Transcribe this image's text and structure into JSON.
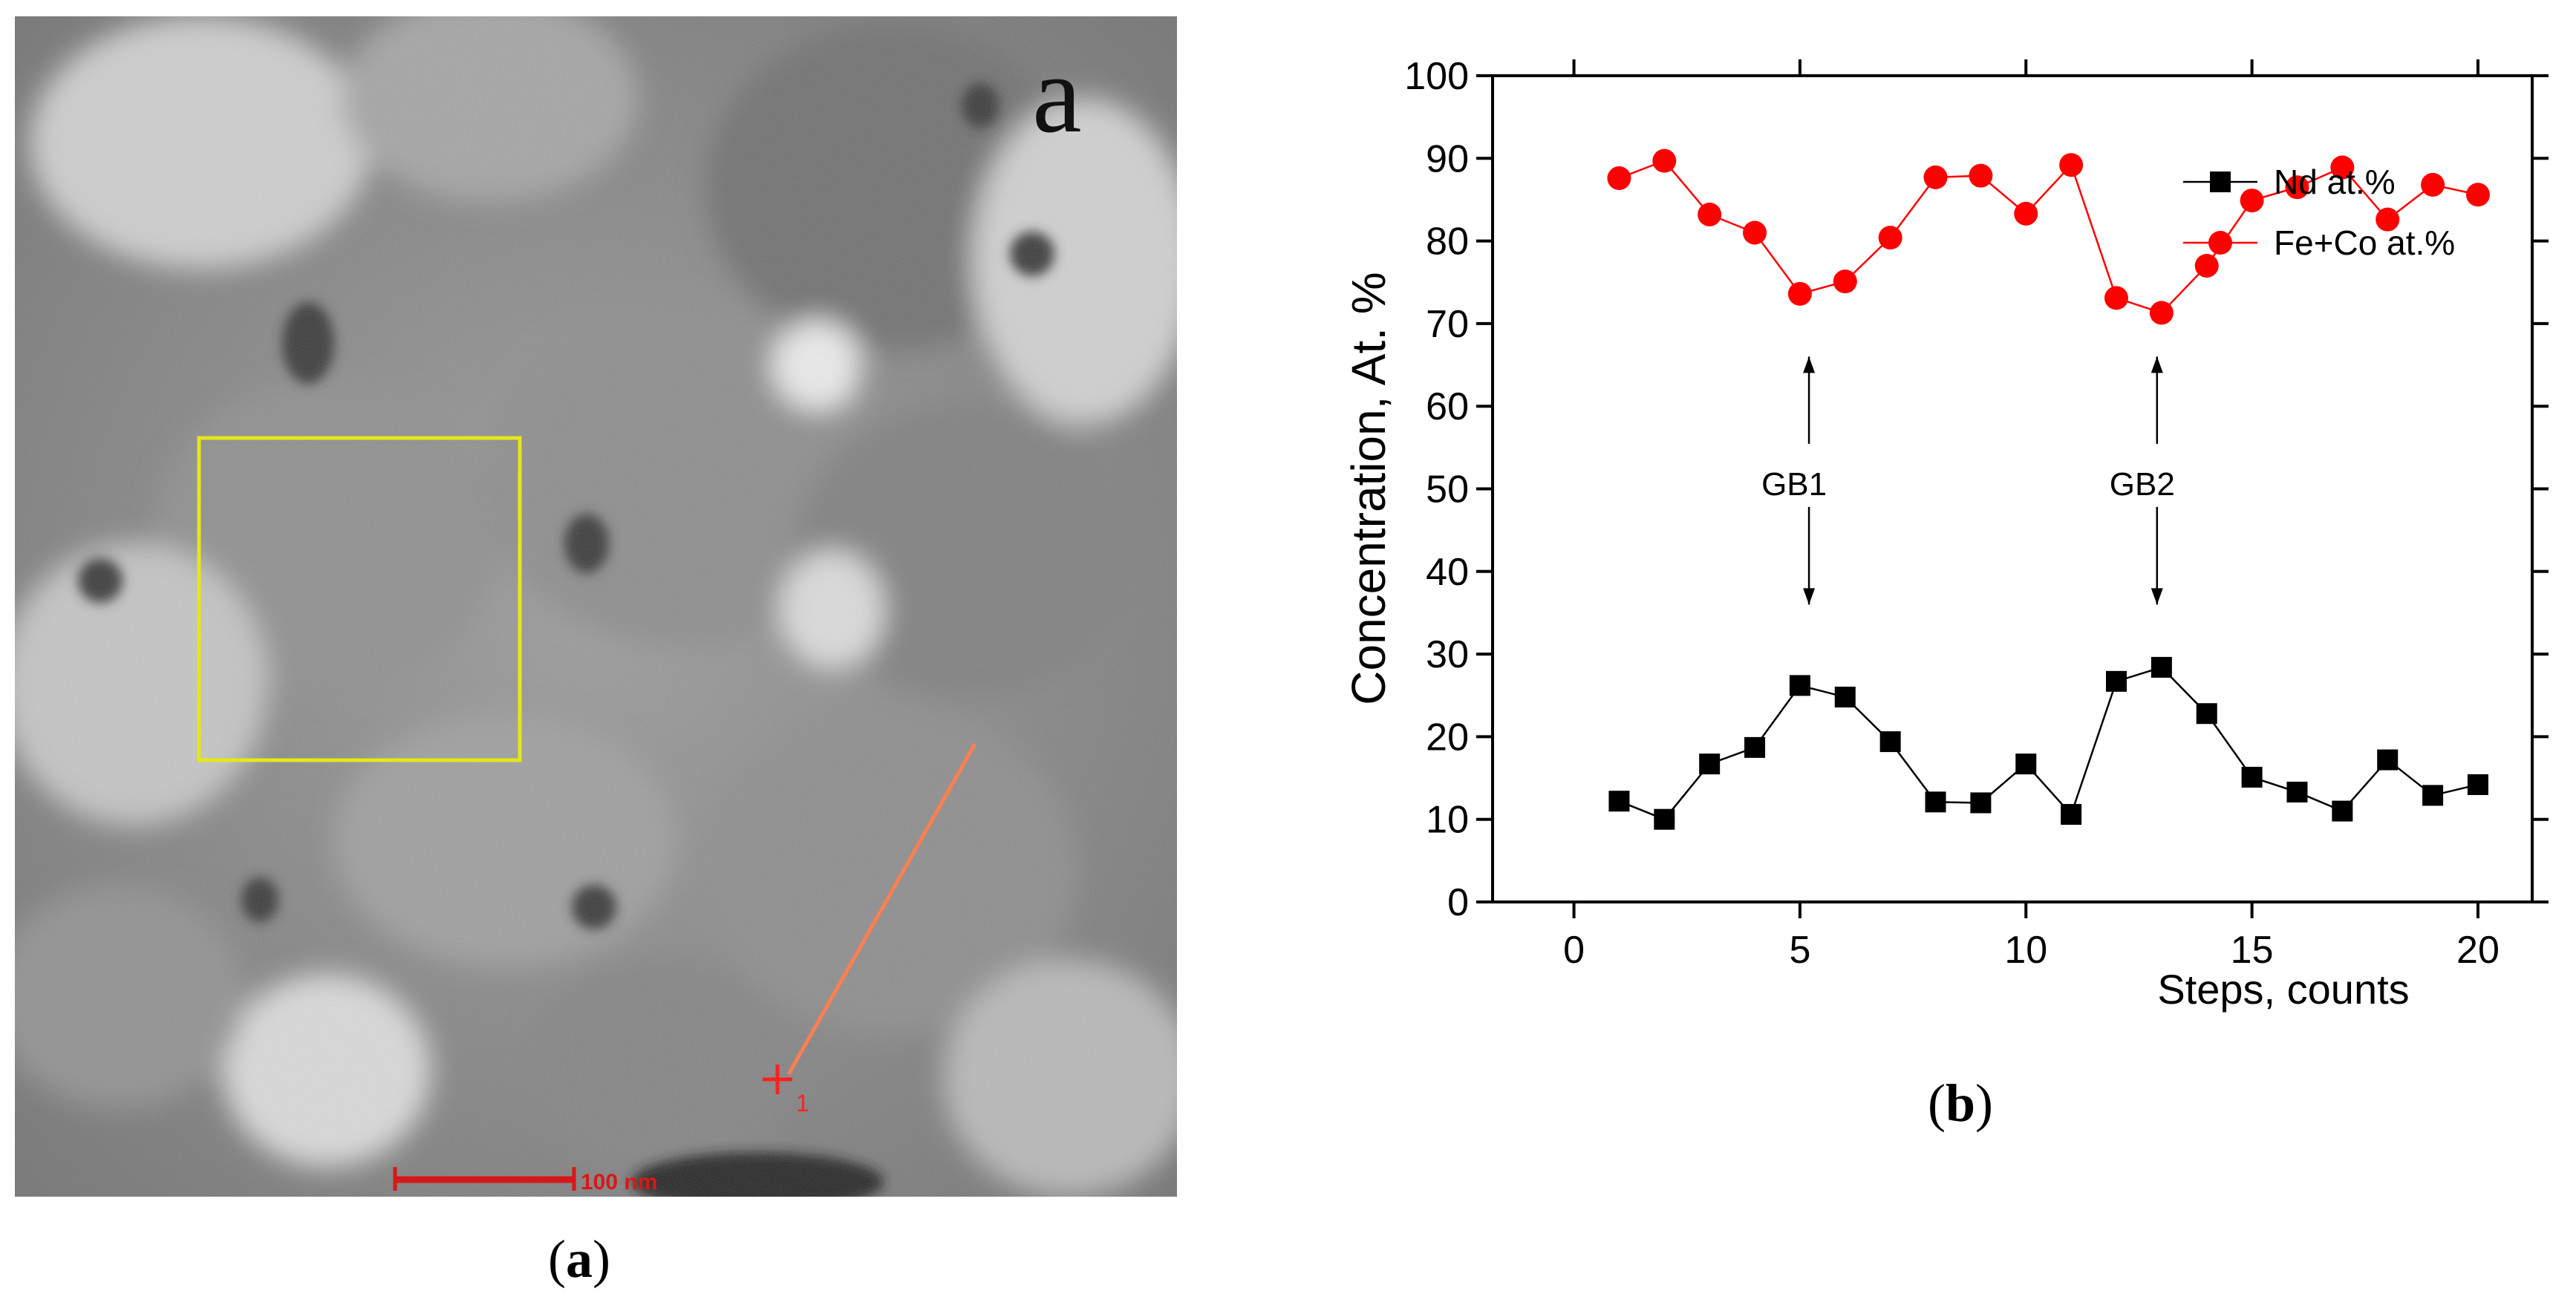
{
  "panel_a": {
    "corner_label": "a",
    "scale_bar_label": "100 nm",
    "point_marker_label": "1",
    "caption_open": "(",
    "caption_letter": "a",
    "caption_close": ")"
  },
  "panel_b": {
    "caption_open": "(",
    "caption_letter": "b",
    "caption_close": ")"
  },
  "colors": {
    "nd": "#000000",
    "fe_co": "#ff0000",
    "selection_box": "#e6e619",
    "scan_line": "#ff7f50"
  },
  "chart_data": {
    "type": "line",
    "title": "",
    "xlabel": "Steps, counts",
    "ylabel": "Concentration, At. %",
    "xlim": [
      -1.8,
      21.2
    ],
    "ylim": [
      0,
      100
    ],
    "x_ticks": [
      0,
      5,
      10,
      15,
      20
    ],
    "y_ticks": [
      0,
      10,
      20,
      30,
      40,
      50,
      60,
      70,
      80,
      90,
      100
    ],
    "x": [
      1,
      2,
      3,
      4,
      5,
      6,
      7,
      8,
      9,
      10,
      11,
      12,
      13,
      14,
      15,
      16,
      17,
      18,
      19,
      20
    ],
    "series": [
      {
        "name": "Nd at.%",
        "marker": "square",
        "values": [
          12.2,
          10.0,
          16.7,
          18.7,
          26.2,
          24.8,
          19.4,
          12.1,
          12.0,
          16.7,
          10.6,
          26.7,
          28.4,
          22.8,
          15.1,
          13.3,
          11.0,
          17.2,
          12.9,
          14.2
        ]
      },
      {
        "name": "Fe+Co at.%",
        "marker": "circle",
        "values": [
          87.6,
          89.7,
          83.2,
          81.0,
          73.6,
          75.1,
          80.4,
          87.7,
          87.9,
          83.3,
          89.2,
          73.1,
          71.3,
          77.0,
          84.9,
          86.5,
          88.9,
          82.6,
          86.8,
          85.6
        ]
      }
    ],
    "annotations": [
      {
        "label": "GB1",
        "x": 5.2,
        "y_from": 36,
        "y_to": 66,
        "label_y": 50.5
      },
      {
        "label": "GB2",
        "x": 12.9,
        "y_from": 36,
        "y_to": 66,
        "label_y": 50.5
      }
    ],
    "legend_position": "center-right"
  }
}
